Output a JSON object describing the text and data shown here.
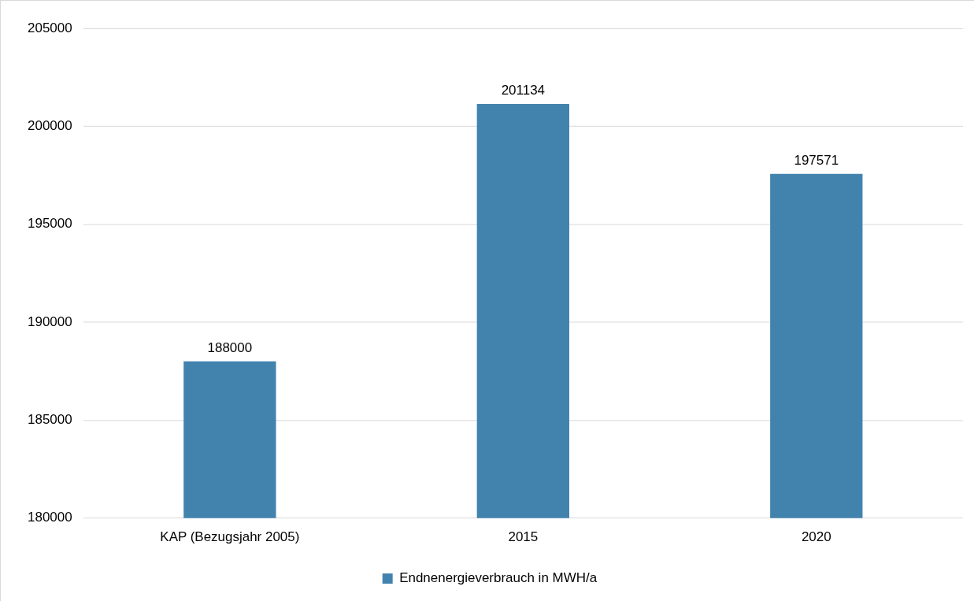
{
  "chart_data": {
    "type": "bar",
    "categories": [
      "KAP (Bezugsjahr 2005)",
      "2015",
      "2020"
    ],
    "series": [
      {
        "name": "Endnenergieverbrauch in MWH/a",
        "color": "#4283ae",
        "values": [
          188000,
          201134,
          197571
        ]
      }
    ],
    "ylim": [
      180000,
      205000
    ],
    "yticks": [
      180000,
      185000,
      190000,
      195000,
      200000,
      205000
    ],
    "grid": "y",
    "legend": "bottom",
    "data_labels": true
  }
}
